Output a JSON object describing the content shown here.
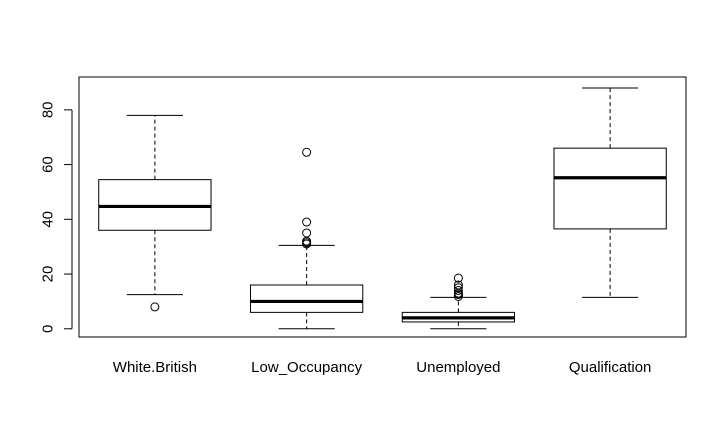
{
  "chart_data": {
    "type": "boxplot",
    "title": "",
    "xlabel": "",
    "ylabel": "",
    "ylim": [
      -3,
      92
    ],
    "yticks": [
      0,
      20,
      40,
      60,
      80
    ],
    "ytick_labels": [
      "0",
      "20",
      "40",
      "60",
      "80"
    ],
    "grid": false,
    "categories": [
      "White.British",
      "Low_Occupancy",
      "Unemployed",
      "Qualification"
    ],
    "boxes": [
      {
        "name": "White.British",
        "whisker_low": 12.5,
        "q1": 36,
        "median": 44.7,
        "q3": 54.5,
        "whisker_high": 78,
        "outliers": [
          8
        ]
      },
      {
        "name": "Low_Occupancy",
        "whisker_low": 0,
        "q1": 6,
        "median": 10,
        "q3": 16,
        "whisker_high": 30.5,
        "outliers": [
          31,
          31.5,
          32,
          35,
          39,
          64.5
        ]
      },
      {
        "name": "Unemployed",
        "whisker_low": 0,
        "q1": 2.5,
        "median": 4,
        "q3": 6,
        "whisker_high": 11.5,
        "outliers": [
          11.8,
          12.5,
          13,
          14,
          15,
          16,
          18.5
        ]
      },
      {
        "name": "Qualification",
        "whisker_low": 11.5,
        "q1": 36.5,
        "median": 55.2,
        "q3": 66,
        "whisker_high": 88,
        "outliers": []
      }
    ]
  }
}
